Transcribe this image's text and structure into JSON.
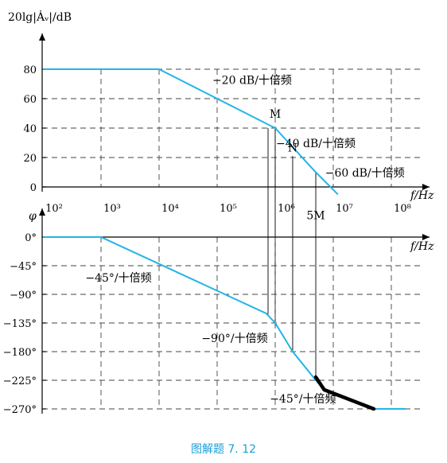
{
  "chart_data": [
    {
      "type": "line",
      "ylabel": "20lg|Ȧᵥ|/dB",
      "xlabel": "f/Hz",
      "xscale": "log",
      "xlim": [
        100,
        100000000
      ],
      "ylim": [
        0,
        80
      ],
      "x_ticks": [
        100,
        1000,
        10000,
        100000,
        1000000,
        10000000,
        100000000
      ],
      "x_tick_labels": [
        "10²",
        "10³",
        "10⁴",
        "10⁵",
        "10⁶",
        "10⁷",
        "10⁸"
      ],
      "y_ticks": [
        0,
        20,
        40,
        60,
        80
      ],
      "y_tick_labels": [
        "0",
        "20",
        "40",
        "60",
        "80"
      ],
      "grid": true,
      "series": [
        {
          "x": [
            100,
            10000,
            1000000,
            5000000,
            12000000
          ],
          "y": [
            80,
            80,
            40,
            10,
            -5
          ]
        }
      ],
      "annotations": [
        {
          "text": "−20 dB/十倍频",
          "x": 400000,
          "y": 70
        },
        {
          "text": "M",
          "x": 1000000,
          "y": 47
        },
        {
          "text": "N",
          "x": 2000000,
          "y": 24
        },
        {
          "text": "−40 dB/十倍频",
          "x": 5000000,
          "y": 27
        },
        {
          "text": "−60 dB/十倍频",
          "x": 35000000,
          "y": 7
        },
        {
          "text": "5M",
          "x": 5000000,
          "y": -22
        }
      ]
    },
    {
      "type": "line",
      "ylabel": "φ",
      "xlabel": "f/Hz",
      "xscale": "log",
      "xlim": [
        100,
        100000000
      ],
      "ylim": [
        -270,
        0
      ],
      "y_ticks": [
        0,
        -45,
        -90,
        -135,
        -180,
        -225,
        -270
      ],
      "y_tick_labels": [
        "0°",
        "−45°",
        "−90°",
        "−135°",
        "−180°",
        "−225°",
        "−270°"
      ],
      "grid": true,
      "series": [
        {
          "x": [
            100,
            1000,
            700000,
            1000000,
            2000000,
            5000000,
            7000000,
            50000000,
            200000000
          ],
          "y": [
            0,
            0,
            -120,
            -135,
            -180,
            -225,
            -240,
            -270,
            -270
          ]
        }
      ],
      "highlight": {
        "x": [
          5000000,
          7000000,
          50000000
        ],
        "y": [
          -220,
          -240,
          -270
        ]
      },
      "annotations": [
        {
          "text": "−45°/十倍频",
          "x": 2000,
          "y": -70
        },
        {
          "text": "−90°/十倍频",
          "x": 200000,
          "y": -165
        },
        {
          "text": "−45°/十倍频",
          "x": 3000000,
          "y": -260
        }
      ]
    }
  ],
  "caption": "图解题 7. 12",
  "colors": {
    "curve": "#22b5e6",
    "caption": "#1aa0d8",
    "highlight": "#000000"
  }
}
